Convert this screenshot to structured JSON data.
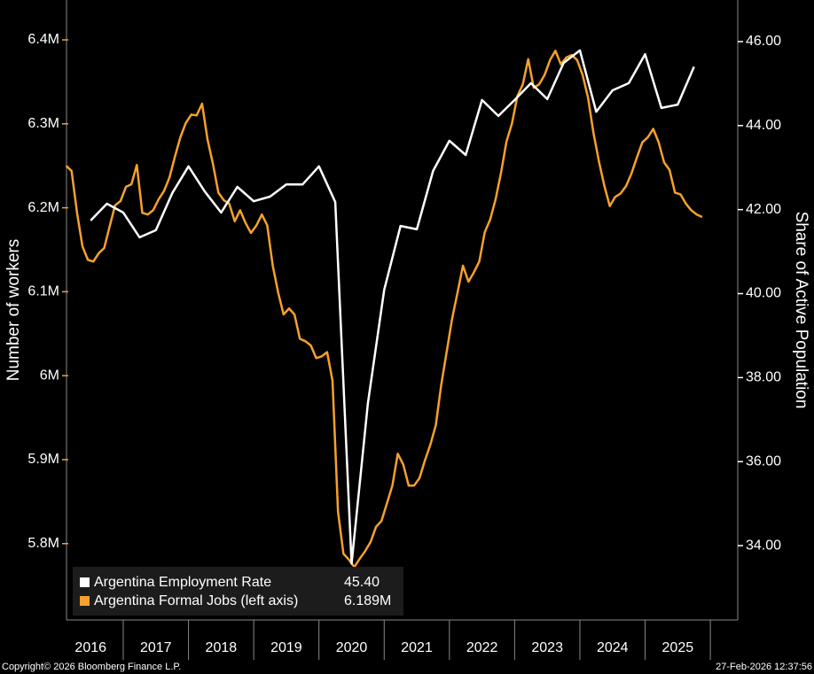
{
  "chart_data": {
    "type": "line",
    "y_label": "Number of workers",
    "y2_label": "Share of Active Population",
    "xlim": [
      2016.13,
      2026.42
    ],
    "xticks": [
      {
        "value": 2016.5,
        "label": "2016"
      },
      {
        "value": 2017.5,
        "label": "2017"
      },
      {
        "value": 2018.5,
        "label": "2018"
      },
      {
        "value": 2019.5,
        "label": "2019"
      },
      {
        "value": 2020.5,
        "label": "2020"
      },
      {
        "value": 2021.5,
        "label": "2021"
      },
      {
        "value": 2022.5,
        "label": "2022"
      },
      {
        "value": 2023.5,
        "label": "2023"
      },
      {
        "value": 2024.5,
        "label": "2024"
      },
      {
        "value": 2025.5,
        "label": "2025"
      }
    ],
    "ylim": [
      5709000,
      6447500
    ],
    "yticks": [
      {
        "value": 5800000,
        "label": "5.8M"
      },
      {
        "value": 5900000,
        "label": "5.9M"
      },
      {
        "value": 6000000,
        "label": "6M"
      },
      {
        "value": 6100000,
        "label": "6.1M"
      },
      {
        "value": 6200000,
        "label": "6.2M"
      },
      {
        "value": 6300000,
        "label": "6.3M"
      },
      {
        "value": 6400000,
        "label": "6.4M"
      }
    ],
    "y2lim": [
      32.23,
      46.99
    ],
    "y2ticks": [
      {
        "value": 34,
        "label": "34.00"
      },
      {
        "value": 36,
        "label": "36.00"
      },
      {
        "value": 38,
        "label": "38.00"
      },
      {
        "value": 40,
        "label": "40.00"
      },
      {
        "value": 42,
        "label": "42.00"
      },
      {
        "value": 44,
        "label": "44.00"
      },
      {
        "value": 46,
        "label": "46.00"
      }
    ],
    "series": [
      {
        "name": "Argentina Employment Rate",
        "color": "#ffffff",
        "axis": "y2",
        "legend_value": "45.40",
        "x": [
          2016.5,
          2016.75,
          2017,
          2017.25,
          2017.5,
          2017.75,
          2018,
          2018.25,
          2018.5,
          2018.75,
          2019,
          2019.25,
          2019.5,
          2019.75,
          2020,
          2020.25,
          2020.5,
          2020.75,
          2021,
          2021.25,
          2021.5,
          2021.75,
          2022,
          2022.25,
          2022.5,
          2022.75,
          2023,
          2023.25,
          2023.5,
          2023.75,
          2024,
          2024.25,
          2024.5,
          2024.75,
          2025,
          2025.25,
          2025.5,
          2025.75
        ],
        "values": [
          41.74,
          42.14,
          41.93,
          41.34,
          41.51,
          42.39,
          43.03,
          42.43,
          41.93,
          42.54,
          42.2,
          42.31,
          42.6,
          42.6,
          43.03,
          42.18,
          33.57,
          37.39,
          40.09,
          41.61,
          41.53,
          42.92,
          43.64,
          43.3,
          44.61,
          44.23,
          44.61,
          45.01,
          44.63,
          45.49,
          45.79,
          44.33,
          44.84,
          45.01,
          45.7,
          44.42,
          44.5,
          45.4
        ]
      },
      {
        "name": "Argentina Formal Jobs (left axis)",
        "color": "#f7a12b",
        "axis": "y",
        "legend_value": "6.189M",
        "x": [
          2016.125,
          2016.208,
          2016.292,
          2016.375,
          2016.458,
          2016.542,
          2016.625,
          2016.708,
          2016.792,
          2016.875,
          2016.958,
          2017.042,
          2017.125,
          2017.208,
          2017.292,
          2017.375,
          2017.458,
          2017.542,
          2017.625,
          2017.708,
          2017.792,
          2017.875,
          2017.958,
          2018.042,
          2018.125,
          2018.208,
          2018.292,
          2018.375,
          2018.458,
          2018.542,
          2018.625,
          2018.708,
          2018.792,
          2018.875,
          2018.958,
          2019.042,
          2019.125,
          2019.208,
          2019.292,
          2019.375,
          2019.458,
          2019.542,
          2019.625,
          2019.708,
          2019.792,
          2019.875,
          2019.958,
          2020.042,
          2020.125,
          2020.208,
          2020.292,
          2020.375,
          2020.458,
          2020.542,
          2020.625,
          2020.708,
          2020.792,
          2020.875,
          2020.958,
          2021.042,
          2021.125,
          2021.208,
          2021.292,
          2021.375,
          2021.458,
          2021.542,
          2021.625,
          2021.708,
          2021.792,
          2021.875,
          2021.958,
          2022.042,
          2022.125,
          2022.208,
          2022.292,
          2022.375,
          2022.458,
          2022.542,
          2022.625,
          2022.708,
          2022.792,
          2022.875,
          2022.958,
          2023.042,
          2023.125,
          2023.208,
          2023.292,
          2023.375,
          2023.458,
          2023.542,
          2023.625,
          2023.708,
          2023.792,
          2023.875,
          2023.958,
          2024.042,
          2024.125,
          2024.208,
          2024.292,
          2024.375,
          2024.458,
          2024.542,
          2024.625,
          2024.708,
          2024.792,
          2024.875,
          2024.958,
          2025.042,
          2025.125,
          2025.208,
          2025.292,
          2025.375,
          2025.458,
          2025.542,
          2025.625,
          2025.708,
          2025.792,
          2025.875
        ],
        "values": [
          6250000,
          6244000,
          6194000,
          6154000,
          6138000,
          6136000,
          6146000,
          6152000,
          6178000,
          6203000,
          6208000,
          6225000,
          6228000,
          6251000,
          6194000,
          6192000,
          6197000,
          6210000,
          6220000,
          6236000,
          6261000,
          6284000,
          6301000,
          6311000,
          6310000,
          6324000,
          6281000,
          6252000,
          6218000,
          6209000,
          6205000,
          6184000,
          6197000,
          6182000,
          6170000,
          6179000,
          6192000,
          6179000,
          6131000,
          6099000,
          6073000,
          6080000,
          6073000,
          6044000,
          6041000,
          6036000,
          6021000,
          6023000,
          6028000,
          5994000,
          5838000,
          5788000,
          5781000,
          5772000,
          5782000,
          5791000,
          5802000,
          5820000,
          5827000,
          5848000,
          5869000,
          5907000,
          5894000,
          5869000,
          5869000,
          5878000,
          5899000,
          5918000,
          5941000,
          5989000,
          6028000,
          6068000,
          6099000,
          6131000,
          6112000,
          6123000,
          6136000,
          6171000,
          6186000,
          6210000,
          6242000,
          6279000,
          6300000,
          6333000,
          6347000,
          6377000,
          6343000,
          6347000,
          6358000,
          6376000,
          6387000,
          6371000,
          6379000,
          6382000,
          6376000,
          6358000,
          6331000,
          6289000,
          6255000,
          6226000,
          6202000,
          6213000,
          6217000,
          6226000,
          6241000,
          6260000,
          6278000,
          6284000,
          6294000,
          6278000,
          6254000,
          6245000,
          6218000,
          6216000,
          6205000,
          6197000,
          6192000,
          6189000
        ]
      }
    ],
    "footer_left": "Copyright© 2026 Bloomberg Finance L.P.",
    "footer_right": "27-Feb-2026 12:37:56"
  }
}
